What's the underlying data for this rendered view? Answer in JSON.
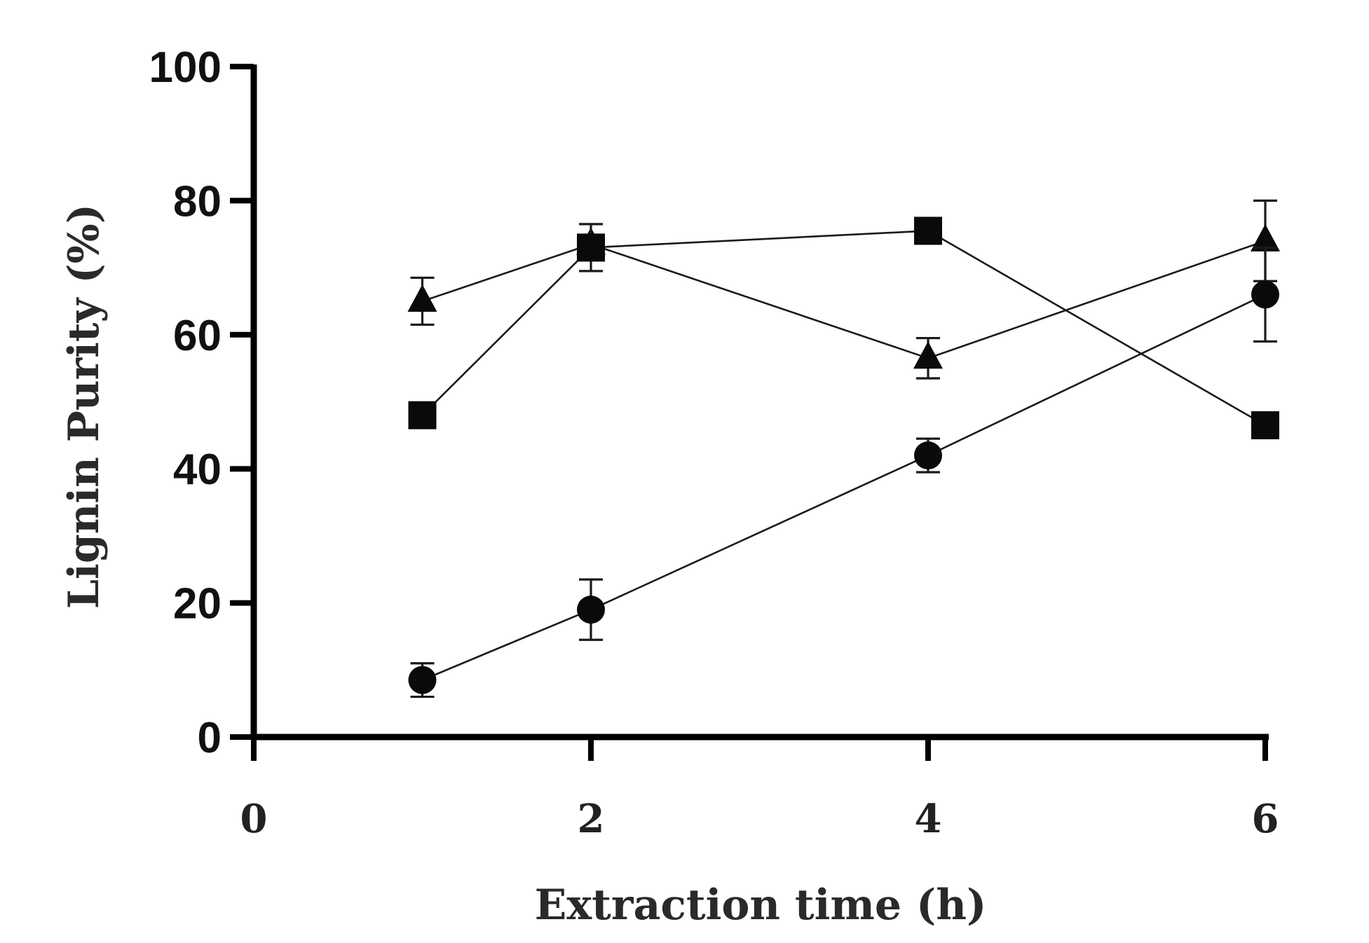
{
  "chart_data": {
    "type": "line",
    "title": "",
    "xlabel": "Extraction time (h)",
    "ylabel": "Lignin Purity (%)",
    "xlim": [
      0,
      6
    ],
    "ylim": [
      0,
      100
    ],
    "xticks": [
      0,
      2,
      4,
      6
    ],
    "yticks": [
      0,
      20,
      40,
      60,
      80,
      100
    ],
    "grid": false,
    "legend": "none",
    "series": [
      {
        "name": "triangle",
        "marker": "triangle",
        "x": [
          1,
          2,
          4,
          6
        ],
        "y": [
          65,
          73.5,
          56.5,
          74
        ],
        "err": [
          3.5,
          0,
          3,
          6
        ]
      },
      {
        "name": "square",
        "marker": "square",
        "x": [
          1,
          2,
          4,
          6
        ],
        "y": [
          48,
          73,
          75.5,
          46.5
        ],
        "err": [
          0,
          3.5,
          0,
          0
        ]
      },
      {
        "name": "circle",
        "marker": "circle",
        "x": [
          1,
          2,
          4,
          6
        ],
        "y": [
          8.5,
          19,
          42,
          66
        ],
        "err": [
          2.5,
          4.5,
          2.5,
          7
        ]
      }
    ]
  }
}
